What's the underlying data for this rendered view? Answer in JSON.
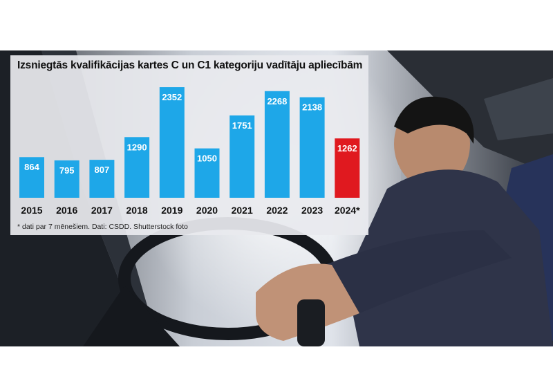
{
  "colors": {
    "bar": "#1ea7e8",
    "highlight_bar": "#e0191f",
    "label_text": "#ffffff",
    "axis_text": "#111111"
  },
  "photo": {
    "description_icon": "truck-driver-photo"
  },
  "chart_data": {
    "type": "bar",
    "title": "Izsniegtās kvalifikācijas kartes C un C1 kategoriju vadītāju apliecībām",
    "categories": [
      "2015",
      "2016",
      "2017",
      "2018",
      "2019",
      "2020",
      "2021",
      "2022",
      "2023",
      "2024*"
    ],
    "values": [
      864,
      795,
      807,
      1290,
      2352,
      1050,
      1751,
      2268,
      2138,
      1262
    ],
    "highlight_index": 9,
    "data_labels": true,
    "ylim": [
      0,
      2500
    ],
    "grid": false,
    "footnote": "* dati par 7 mēnešiem. Dati: CSDD. Shutterstock foto"
  }
}
